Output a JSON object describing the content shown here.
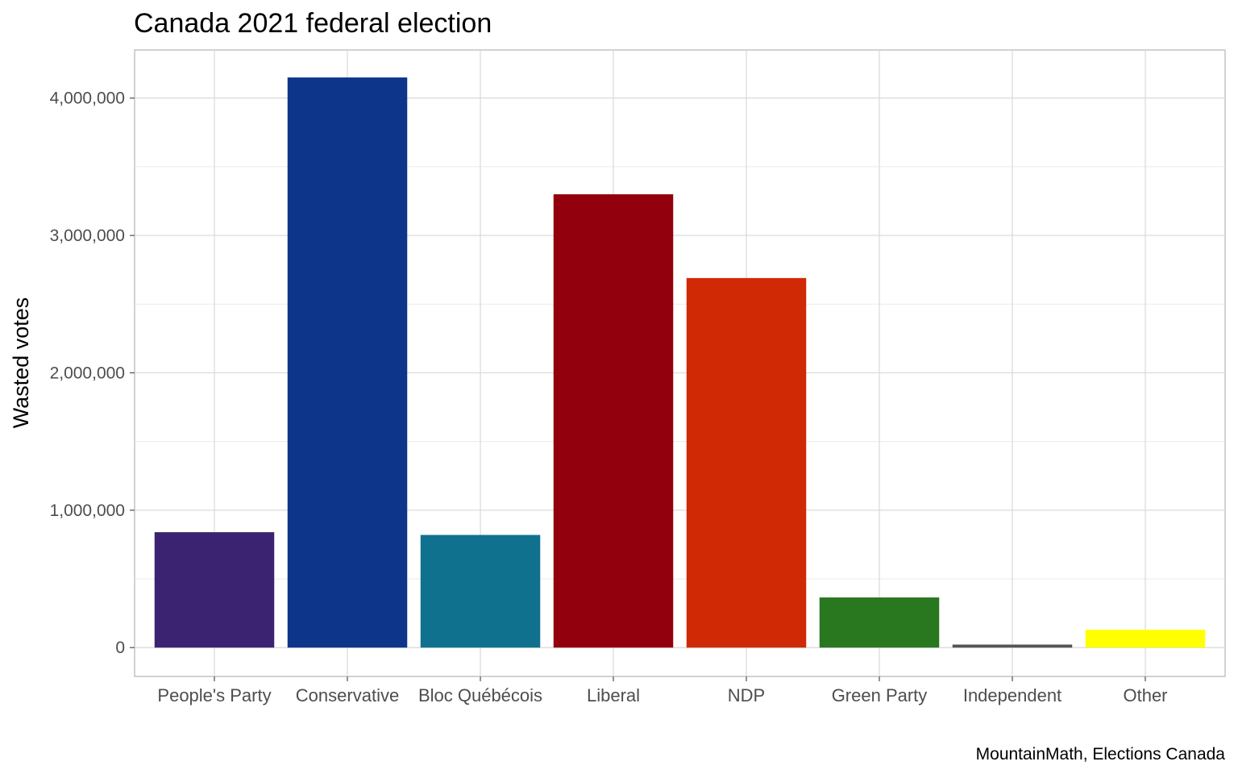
{
  "chart_data": {
    "type": "bar",
    "title": "Canada 2021 federal election",
    "xlabel": "",
    "ylabel": "Wasted votes",
    "caption": "MountainMath, Elections Canada",
    "categories": [
      "People's Party",
      "Conservative",
      "Bloc Québécois",
      "Liberal",
      "NDP",
      "Green Party",
      "Independent",
      "Other"
    ],
    "values": [
      840000,
      4150000,
      820000,
      3300000,
      2690000,
      365000,
      22000,
      130000
    ],
    "colors": [
      "#3b2371",
      "#0d368b",
      "#10718f",
      "#92000d",
      "#d02906",
      "#29771f",
      "#555555",
      "#ffff00"
    ],
    "ylim": [
      -210000,
      4350000
    ],
    "yticks": [
      0,
      1000000,
      2000000,
      3000000,
      4000000
    ],
    "ytick_labels": [
      "0",
      "1,000,000",
      "2,000,000",
      "3,000,000",
      "4,000,000"
    ],
    "grid": true,
    "legend": "none"
  }
}
